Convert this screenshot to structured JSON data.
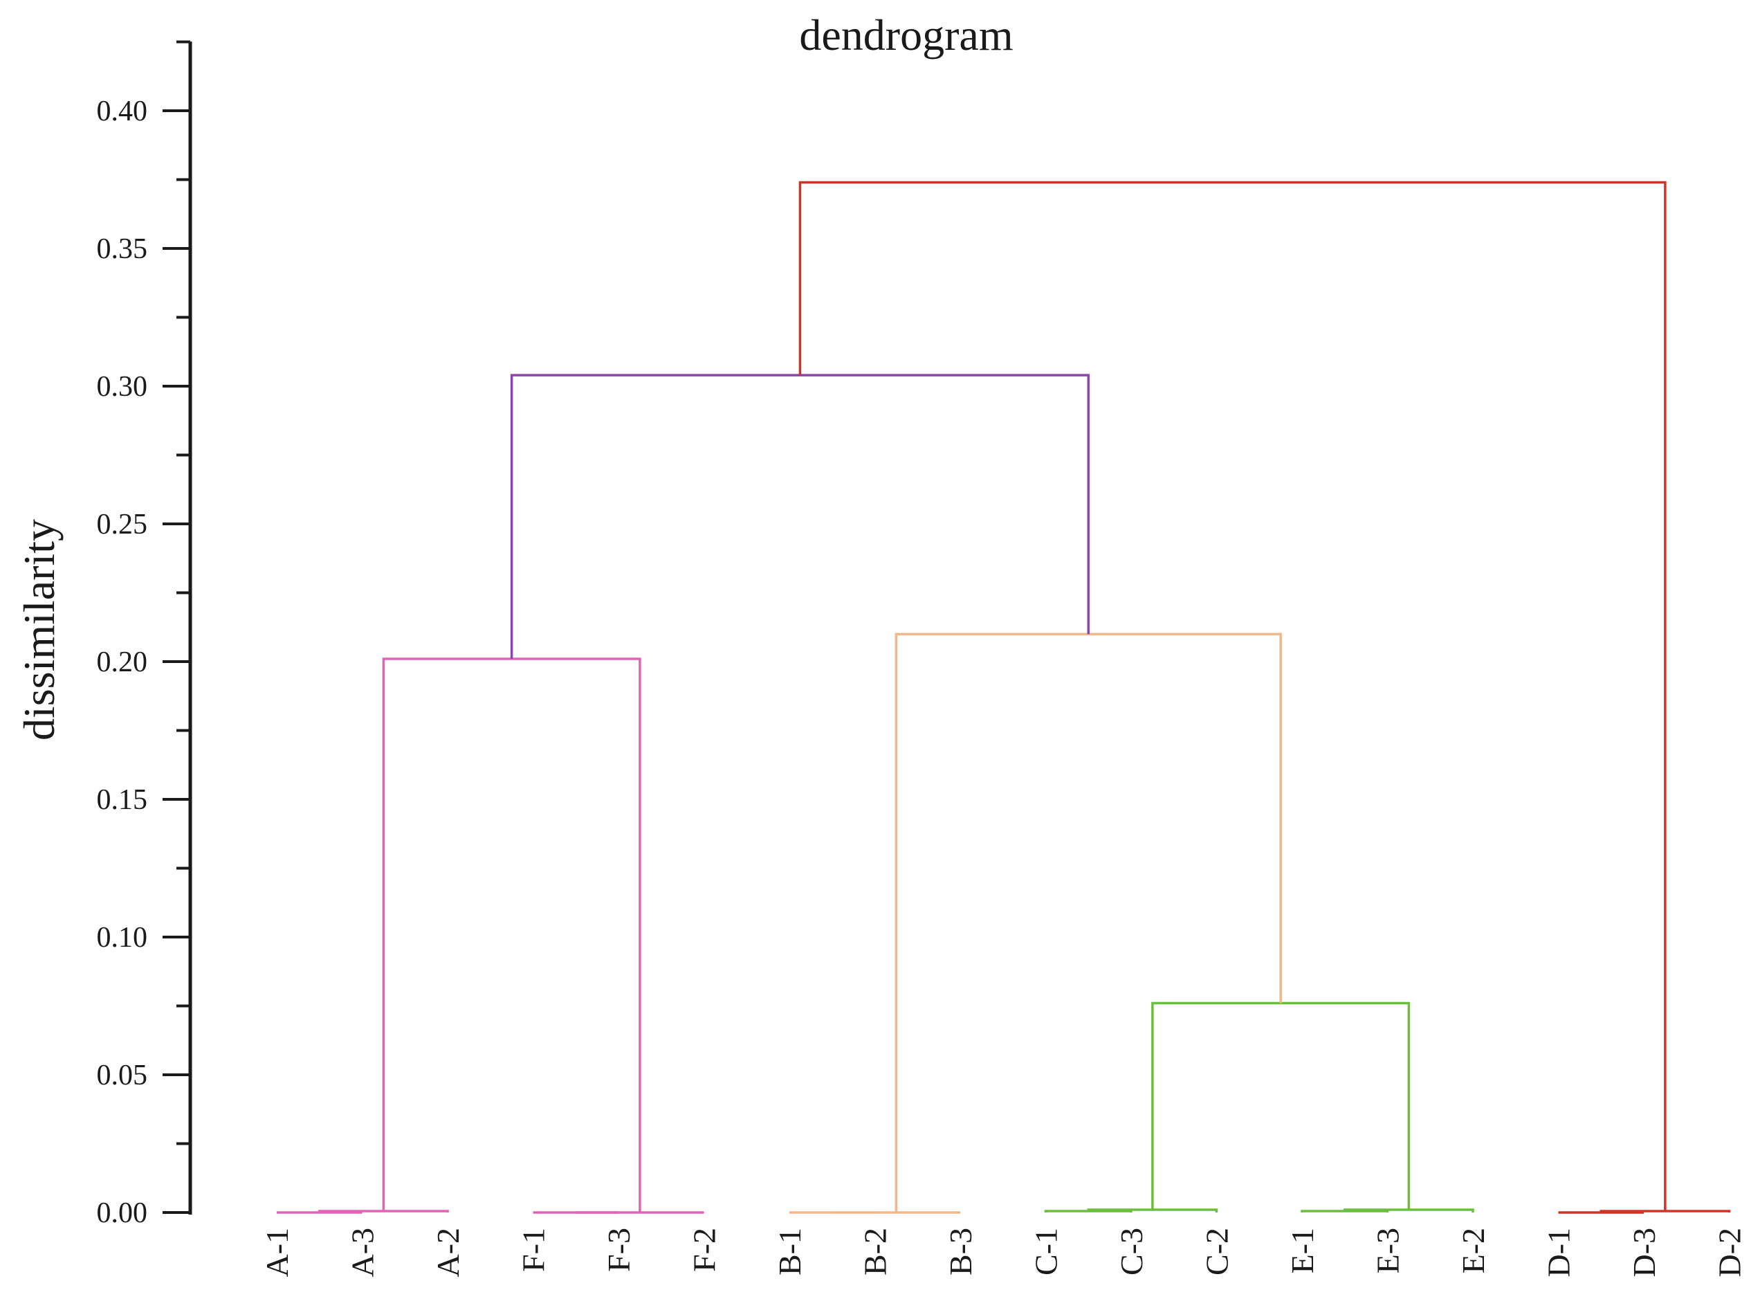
{
  "chart_data": {
    "type": "dendrogram",
    "title": "dendrogram",
    "ylabel": "dissimilarity",
    "xlabel": "",
    "ylim": [
      0,
      0.42
    ],
    "yticks": [
      0.0,
      0.05,
      0.1,
      0.15,
      0.2,
      0.25,
      0.3,
      0.35,
      0.4
    ],
    "ytick_labels": [
      "0.00",
      "0.05",
      "0.10",
      "0.15",
      "0.20",
      "0.25",
      "0.30",
      "0.35",
      "0.40"
    ],
    "leaves": [
      "A-1",
      "A-3",
      "A-2",
      "F-1",
      "F-3",
      "F-2",
      "B-1",
      "B-2",
      "B-3",
      "C-1",
      "C-3",
      "C-2",
      "E-1",
      "E-3",
      "E-2",
      "D-1",
      "D-3",
      "D-2"
    ],
    "colors": {
      "pink": "#e563b6",
      "purple": "#8a48a8",
      "peach": "#f2b78a",
      "green": "#6cbf3e",
      "red": "#d33326"
    },
    "merges": [
      {
        "id": "m1",
        "left": "A-1",
        "right": "A-3",
        "height": 0.0,
        "color": "pink"
      },
      {
        "id": "m2",
        "left": "m1",
        "right": "A-2",
        "height": 0.0005,
        "color": "pink"
      },
      {
        "id": "m3",
        "left": "F-1",
        "right": "F-3",
        "height": 0.0,
        "color": "pink"
      },
      {
        "id": "m4",
        "left": "m3",
        "right": "F-2",
        "height": 0.0,
        "color": "pink"
      },
      {
        "id": "m5",
        "left": "m2",
        "right": "m4",
        "height": 0.201,
        "color": "pink"
      },
      {
        "id": "m6",
        "left": "B-1",
        "right": "B-2",
        "height": 0.0,
        "color": "peach"
      },
      {
        "id": "m7",
        "left": "m6",
        "right": "B-3",
        "height": 0.0,
        "color": "peach"
      },
      {
        "id": "m8",
        "left": "C-1",
        "right": "C-3",
        "height": 0.0005,
        "color": "green"
      },
      {
        "id": "m9",
        "left": "m8",
        "right": "C-2",
        "height": 0.001,
        "color": "green"
      },
      {
        "id": "m10",
        "left": "E-1",
        "right": "E-3",
        "height": 0.0005,
        "color": "green"
      },
      {
        "id": "m11",
        "left": "m10",
        "right": "E-2",
        "height": 0.001,
        "color": "green"
      },
      {
        "id": "m12",
        "left": "m9",
        "right": "m11",
        "height": 0.076,
        "color": "green"
      },
      {
        "id": "m13",
        "left": "m7",
        "right": "m12",
        "height": 0.21,
        "color": "peach"
      },
      {
        "id": "m14",
        "left": "m5",
        "right": "m13",
        "height": 0.304,
        "color": "purple"
      },
      {
        "id": "m15",
        "left": "D-1",
        "right": "D-3",
        "height": 0.0,
        "color": "red"
      },
      {
        "id": "m16",
        "left": "m15",
        "right": "D-2",
        "height": 0.0005,
        "color": "red"
      },
      {
        "id": "m17",
        "left": "m14",
        "right": "m16",
        "height": 0.374,
        "color": "red"
      }
    ]
  }
}
